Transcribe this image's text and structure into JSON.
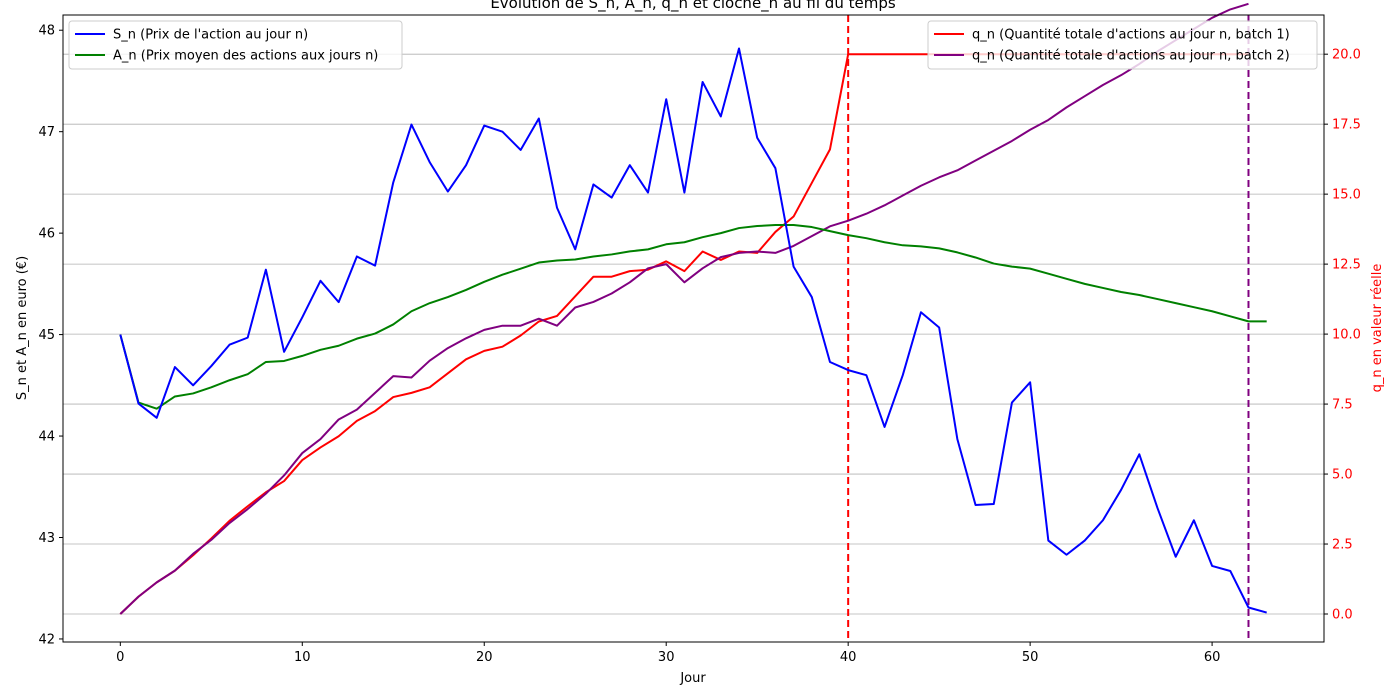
{
  "chart_data": {
    "type": "line",
    "title": "Évolution de S_n, A_n, q_n et cloche_n au fil du temps",
    "xlabel": "Jour",
    "ylabel_left": "S_n et A_n en euro (€)",
    "ylabel_right": "q_n en valeur réelle",
    "xlim": [
      -3.15,
      66.15
    ],
    "ylim_left": [
      41.97,
      48.15
    ],
    "ylim_right": [
      -1.0,
      21.4
    ],
    "xticks": [
      0,
      10,
      20,
      30,
      40,
      50,
      60
    ],
    "yticks_left": [
      42,
      43,
      44,
      45,
      46,
      47,
      48
    ],
    "yticks_right": [
      "0.0",
      "2.5",
      "5.0",
      "7.5",
      "10.0",
      "12.5",
      "15.0",
      "17.5",
      "20.0"
    ],
    "grid": "horizontal lines on right axis ticks",
    "legend_left": "upper-left",
    "legend_right": "upper-right",
    "series_left": [
      {
        "name": "S_n (Prix de l'action au jour n)",
        "color": "#0000ff",
        "x": [
          0,
          1,
          2,
          3,
          4,
          5,
          6,
          7,
          8,
          9,
          10,
          11,
          12,
          13,
          14,
          15,
          16,
          17,
          18,
          19,
          20,
          21,
          22,
          23,
          24,
          25,
          26,
          27,
          28,
          29,
          30,
          31,
          32,
          33,
          34,
          35,
          36,
          37,
          38,
          39,
          40,
          41,
          42,
          43,
          44,
          45,
          46,
          47,
          48,
          49,
          50,
          51,
          52,
          53,
          54,
          55,
          56,
          57,
          58,
          59,
          60,
          61,
          62,
          63
        ],
        "y": [
          45.0,
          44.32,
          44.18,
          44.68,
          44.5,
          44.69,
          44.9,
          44.97,
          45.64,
          44.83,
          45.17,
          45.53,
          45.32,
          45.77,
          45.68,
          46.5,
          47.07,
          46.7,
          46.41,
          46.67,
          47.06,
          47.0,
          46.82,
          47.13,
          46.25,
          45.84,
          46.48,
          46.35,
          46.67,
          46.4,
          47.32,
          46.4,
          47.49,
          47.15,
          47.82,
          46.94,
          46.64,
          45.67,
          45.37,
          44.73,
          44.65,
          44.6,
          44.09,
          44.6,
          45.22,
          45.07,
          43.97,
          43.32,
          43.33,
          44.33,
          44.53,
          42.97,
          42.83,
          42.97,
          43.17,
          43.47,
          43.82,
          43.29,
          42.81,
          43.17,
          42.72,
          42.67,
          42.31,
          42.26
        ]
      },
      {
        "name": "A_n (Prix moyen des actions aux jours n)",
        "color": "#008000",
        "x": [
          0,
          1,
          2,
          3,
          4,
          5,
          6,
          7,
          8,
          9,
          10,
          11,
          12,
          13,
          14,
          15,
          16,
          17,
          18,
          19,
          20,
          21,
          22,
          23,
          24,
          25,
          26,
          27,
          28,
          29,
          30,
          31,
          32,
          33,
          34,
          35,
          36,
          37,
          38,
          39,
          40,
          41,
          42,
          43,
          44,
          45,
          46,
          47,
          48,
          49,
          50,
          51,
          52,
          53,
          54,
          55,
          56,
          57,
          58,
          59,
          60,
          61,
          62,
          63
        ],
        "y": [
          45.0,
          44.33,
          44.27,
          44.39,
          44.42,
          44.48,
          44.55,
          44.61,
          44.73,
          44.74,
          44.79,
          44.85,
          44.89,
          44.96,
          45.01,
          45.1,
          45.23,
          45.31,
          45.37,
          45.44,
          45.52,
          45.59,
          45.65,
          45.71,
          45.73,
          45.74,
          45.77,
          45.79,
          45.82,
          45.84,
          45.89,
          45.91,
          45.96,
          46.0,
          46.05,
          46.07,
          46.08,
          46.08,
          46.06,
          46.02,
          45.98,
          45.95,
          45.91,
          45.88,
          45.87,
          45.85,
          45.81,
          45.76,
          45.7,
          45.67,
          45.65,
          45.6,
          45.55,
          45.5,
          45.46,
          45.42,
          45.39,
          45.35,
          45.31,
          45.27,
          45.23,
          45.18,
          45.13,
          45.13
        ]
      }
    ],
    "series_right": [
      {
        "name": "q_n (Quantité totale d'actions au jour n, batch 1)",
        "color": "#ff0000",
        "x": [
          0,
          1,
          2,
          3,
          4,
          5,
          6,
          7,
          8,
          9,
          10,
          11,
          12,
          13,
          14,
          15,
          16,
          17,
          18,
          19,
          20,
          21,
          22,
          23,
          24,
          25,
          26,
          27,
          28,
          29,
          30,
          31,
          32,
          33,
          34,
          35,
          36,
          37,
          38,
          39,
          40,
          41,
          42,
          43,
          44,
          45,
          46,
          47,
          48,
          49,
          50,
          51,
          52,
          53,
          54,
          55,
          56,
          57,
          58,
          59,
          60,
          61,
          62
        ],
        "y": [
          0.0,
          0.62,
          1.13,
          1.55,
          2.1,
          2.7,
          3.33,
          3.85,
          4.35,
          4.75,
          5.5,
          5.95,
          6.35,
          6.9,
          7.25,
          7.75,
          7.9,
          8.1,
          8.6,
          9.1,
          9.4,
          9.55,
          9.95,
          10.45,
          10.65,
          11.35,
          12.05,
          12.05,
          12.25,
          12.3,
          12.6,
          12.25,
          12.95,
          12.65,
          12.95,
          12.9,
          13.65,
          14.2,
          15.4,
          16.6,
          20.0,
          20.0,
          20.0,
          20.0,
          20.0,
          20.0,
          20.0,
          20.0,
          20.0,
          20.0,
          20.0,
          20.0,
          20.0,
          20.0,
          20.0,
          20.0,
          20.0,
          20.0,
          20.0,
          20.0,
          20.0,
          20.0,
          20.0
        ]
      },
      {
        "name": "q_n (Quantité totale d'actions au jour n, batch 2)",
        "color": "#800080",
        "x": [
          0,
          1,
          2,
          3,
          4,
          5,
          6,
          7,
          8,
          9,
          10,
          11,
          12,
          13,
          14,
          15,
          16,
          17,
          18,
          19,
          20,
          21,
          22,
          23,
          24,
          25,
          26,
          27,
          28,
          29,
          30,
          31,
          32,
          33,
          34,
          35,
          36,
          37,
          38,
          39,
          40,
          41,
          42,
          43,
          44,
          45,
          46,
          47,
          48,
          49,
          50,
          51,
          52,
          53,
          54,
          55,
          56,
          57,
          58,
          59,
          60,
          61,
          62
        ],
        "y": [
          0.0,
          0.62,
          1.13,
          1.55,
          2.15,
          2.65,
          3.25,
          3.75,
          4.3,
          4.95,
          5.75,
          6.25,
          6.95,
          7.3,
          7.9,
          8.5,
          8.45,
          9.05,
          9.5,
          9.85,
          10.15,
          10.3,
          10.3,
          10.55,
          10.3,
          10.95,
          11.15,
          11.45,
          11.85,
          12.35,
          12.5,
          11.85,
          12.35,
          12.75,
          12.9,
          12.95,
          12.9,
          13.15,
          13.5,
          13.85,
          14.05,
          14.3,
          14.6,
          14.95,
          15.3,
          15.6,
          15.85,
          16.2,
          16.55,
          16.9,
          17.3,
          17.65,
          18.1,
          18.5,
          18.9,
          19.25,
          19.65,
          20.1,
          20.5,
          20.9,
          21.3,
          21.6,
          21.8
        ]
      }
    ],
    "vlines": [
      {
        "x": 40,
        "color": "#ff0000"
      },
      {
        "x": 62,
        "color": "#800080"
      }
    ]
  }
}
